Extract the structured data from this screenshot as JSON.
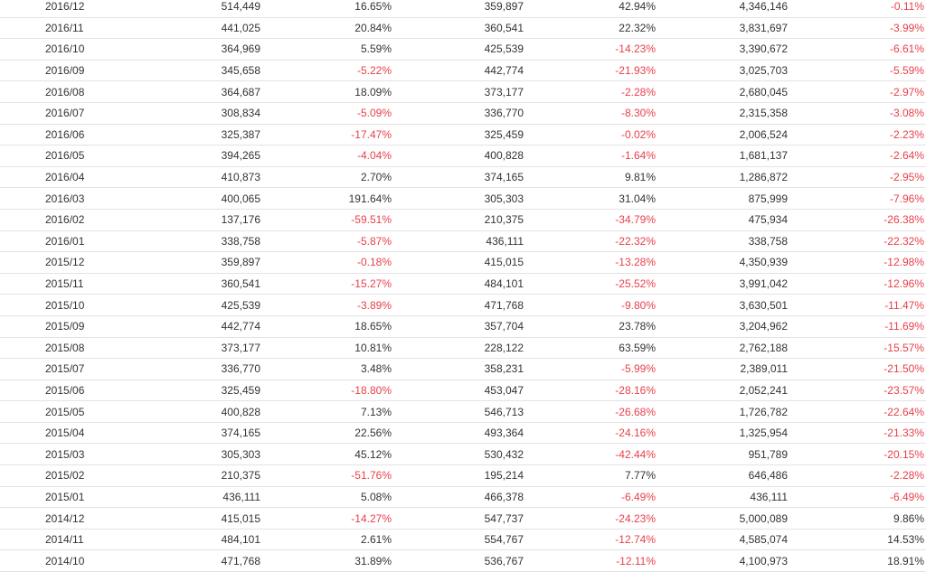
{
  "colors": {
    "text": "#333333",
    "negative": "#e8414a",
    "row_border": "#e3e3e3"
  },
  "table": {
    "rows": [
      [
        "2016/12",
        "514,449",
        "16.65%",
        "359,897",
        "42.94%",
        "4,346,146",
        "-0.11%"
      ],
      [
        "2016/11",
        "441,025",
        "20.84%",
        "360,541",
        "22.32%",
        "3,831,697",
        "-3.99%"
      ],
      [
        "2016/10",
        "364,969",
        "5.59%",
        "425,539",
        "-14.23%",
        "3,390,672",
        "-6.61%"
      ],
      [
        "2016/09",
        "345,658",
        "-5.22%",
        "442,774",
        "-21.93%",
        "3,025,703",
        "-5.59%"
      ],
      [
        "2016/08",
        "364,687",
        "18.09%",
        "373,177",
        "-2.28%",
        "2,680,045",
        "-2.97%"
      ],
      [
        "2016/07",
        "308,834",
        "-5.09%",
        "336,770",
        "-8.30%",
        "2,315,358",
        "-3.08%"
      ],
      [
        "2016/06",
        "325,387",
        "-17.47%",
        "325,459",
        "-0.02%",
        "2,006,524",
        "-2.23%"
      ],
      [
        "2016/05",
        "394,265",
        "-4.04%",
        "400,828",
        "-1.64%",
        "1,681,137",
        "-2.64%"
      ],
      [
        "2016/04",
        "410,873",
        "2.70%",
        "374,165",
        "9.81%",
        "1,286,872",
        "-2.95%"
      ],
      [
        "2016/03",
        "400,065",
        "191.64%",
        "305,303",
        "31.04%",
        "875,999",
        "-7.96%"
      ],
      [
        "2016/02",
        "137,176",
        "-59.51%",
        "210,375",
        "-34.79%",
        "475,934",
        "-26.38%"
      ],
      [
        "2016/01",
        "338,758",
        "-5.87%",
        "436,111",
        "-22.32%",
        "338,758",
        "-22.32%"
      ],
      [
        "2015/12",
        "359,897",
        "-0.18%",
        "415,015",
        "-13.28%",
        "4,350,939",
        "-12.98%"
      ],
      [
        "2015/11",
        "360,541",
        "-15.27%",
        "484,101",
        "-25.52%",
        "3,991,042",
        "-12.96%"
      ],
      [
        "2015/10",
        "425,539",
        "-3.89%",
        "471,768",
        "-9.80%",
        "3,630,501",
        "-11.47%"
      ],
      [
        "2015/09",
        "442,774",
        "18.65%",
        "357,704",
        "23.78%",
        "3,204,962",
        "-11.69%"
      ],
      [
        "2015/08",
        "373,177",
        "10.81%",
        "228,122",
        "63.59%",
        "2,762,188",
        "-15.57%"
      ],
      [
        "2015/07",
        "336,770",
        "3.48%",
        "358,231",
        "-5.99%",
        "2,389,011",
        "-21.50%"
      ],
      [
        "2015/06",
        "325,459",
        "-18.80%",
        "453,047",
        "-28.16%",
        "2,052,241",
        "-23.57%"
      ],
      [
        "2015/05",
        "400,828",
        "7.13%",
        "546,713",
        "-26.68%",
        "1,726,782",
        "-22.64%"
      ],
      [
        "2015/04",
        "374,165",
        "22.56%",
        "493,364",
        "-24.16%",
        "1,325,954",
        "-21.33%"
      ],
      [
        "2015/03",
        "305,303",
        "45.12%",
        "530,432",
        "-42.44%",
        "951,789",
        "-20.15%"
      ],
      [
        "2015/02",
        "210,375",
        "-51.76%",
        "195,214",
        "7.77%",
        "646,486",
        "-2.28%"
      ],
      [
        "2015/01",
        "436,111",
        "5.08%",
        "466,378",
        "-6.49%",
        "436,111",
        "-6.49%"
      ],
      [
        "2014/12",
        "415,015",
        "-14.27%",
        "547,737",
        "-24.23%",
        "5,000,089",
        "9.86%"
      ],
      [
        "2014/11",
        "484,101",
        "2.61%",
        "554,767",
        "-12.74%",
        "4,585,074",
        "14.53%"
      ],
      [
        "2014/10",
        "471,768",
        "31.89%",
        "536,767",
        "-12.11%",
        "4,100,973",
        "18.91%"
      ]
    ]
  }
}
